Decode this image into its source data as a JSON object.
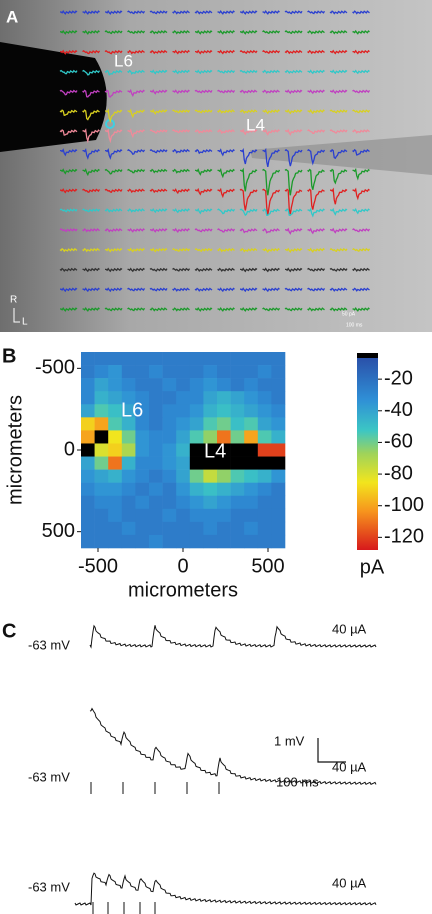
{
  "panel_labels": [
    "A",
    "B",
    "C"
  ],
  "panel_a": {
    "labels": [
      "L6",
      "L4"
    ],
    "orientation": [
      "R",
      "L"
    ],
    "scale_bar": [
      "50 pA",
      "100 ms"
    ]
  },
  "chart_data": {
    "type": "heatmap",
    "xlabel": "micrometers",
    "ylabel": "micrometers",
    "colorbar_label": "pA",
    "annotations": [
      "L6",
      "L4"
    ],
    "x": [
      -560,
      -480,
      -400,
      -320,
      -240,
      -160,
      -80,
      0,
      80,
      160,
      240,
      320,
      400,
      480,
      560
    ],
    "y": [
      -560,
      -480,
      -400,
      -320,
      -240,
      -160,
      -80,
      0,
      80,
      160,
      240,
      320,
      400,
      480,
      560
    ],
    "xlim": [
      -600,
      600
    ],
    "ylim": [
      -600,
      600
    ],
    "xticks": [
      -500,
      0,
      500
    ],
    "yticks": [
      -500,
      0,
      500
    ],
    "clim": [
      -128,
      -6
    ],
    "cticks": [
      -20,
      -40,
      -60,
      -80,
      -100,
      -120
    ],
    "values": [
      [
        -25,
        -25,
        -25,
        -25,
        -25,
        -25,
        -25,
        -25,
        -25,
        -25,
        -25,
        -25,
        -25,
        -25,
        -25
      ],
      [
        -25,
        -30,
        -35,
        -25,
        -25,
        -30,
        -25,
        -25,
        -25,
        -30,
        -25,
        -25,
        -25,
        -30,
        -25
      ],
      [
        -30,
        -40,
        -35,
        -30,
        -25,
        -25,
        -30,
        -25,
        -30,
        -35,
        -30,
        -25,
        -30,
        -25,
        -25
      ],
      [
        -30,
        -45,
        -40,
        -35,
        -30,
        -25,
        -25,
        -30,
        -30,
        -40,
        -45,
        -40,
        -35,
        -30,
        -25
      ],
      [
        -40,
        -55,
        -50,
        -40,
        -30,
        -25,
        -30,
        -30,
        -35,
        -45,
        -50,
        -45,
        -40,
        -35,
        -30
      ],
      [
        -90,
        -100,
        -55,
        -45,
        -30,
        -25,
        -30,
        -35,
        -40,
        -55,
        -60,
        -50,
        -55,
        -40,
        -35
      ],
      [
        -100,
        -130,
        -85,
        -60,
        -35,
        -30,
        -30,
        -40,
        -55,
        -65,
        -110,
        -60,
        -100,
        -55,
        -45
      ],
      [
        -130,
        -80,
        -90,
        -70,
        -35,
        -30,
        -35,
        -45,
        -130,
        -130,
        -130,
        -130,
        -130,
        -120,
        -120
      ],
      [
        -40,
        -60,
        -110,
        -45,
        -30,
        -30,
        -35,
        -40,
        -130,
        -130,
        -130,
        -130,
        -130,
        -130,
        -130
      ],
      [
        -35,
        -40,
        -45,
        -35,
        -30,
        -25,
        -30,
        -40,
        -60,
        -75,
        -65,
        -55,
        -50,
        -45,
        -35
      ],
      [
        -30,
        -35,
        -35,
        -30,
        -25,
        -30,
        -25,
        -35,
        -45,
        -50,
        -45,
        -40,
        -35,
        -30,
        -25
      ],
      [
        -25,
        -30,
        -30,
        -25,
        -30,
        -25,
        -25,
        -30,
        -35,
        -40,
        -35,
        -30,
        -30,
        -25,
        -25
      ],
      [
        -25,
        -25,
        -30,
        -25,
        -25,
        -25,
        -30,
        -25,
        -30,
        -30,
        -30,
        -25,
        -25,
        -25,
        -25
      ],
      [
        -25,
        -25,
        -25,
        -30,
        -25,
        -25,
        -25,
        -25,
        -25,
        -30,
        -25,
        -25,
        -30,
        -25,
        -25
      ],
      [
        -25,
        -25,
        -25,
        -25,
        -25,
        -30,
        -25,
        -25,
        -25,
        -25,
        -25,
        -25,
        -25,
        -25,
        -25
      ]
    ]
  },
  "panel_c": {
    "traces": [
      {
        "potential": "-63 mV",
        "stimulus": "40 µA"
      },
      {
        "potential": "-63 mV",
        "stimulus": "40 µA"
      },
      {
        "potential": "-63 mV",
        "stimulus": "40 µA"
      }
    ],
    "scale_bar": {
      "y": "1 mV",
      "x": "100 ms"
    }
  }
}
